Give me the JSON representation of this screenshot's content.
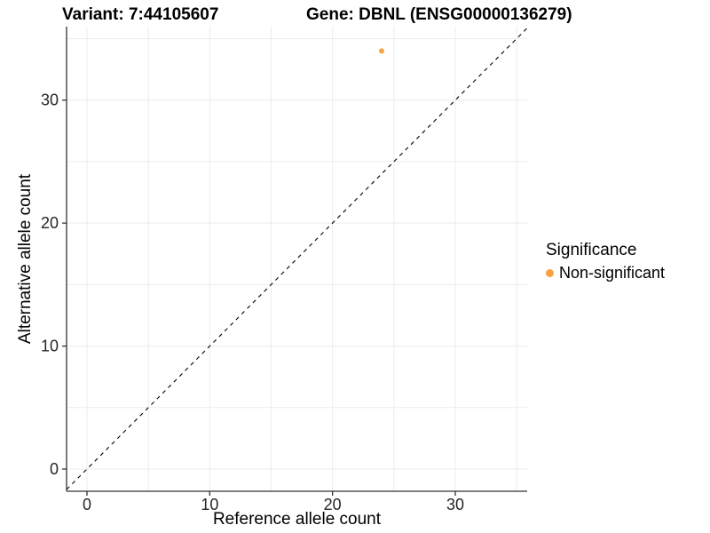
{
  "figure": {
    "title_left": "Variant: 7:44105607",
    "title_right": "Gene: DBNL (ENSG00000136279)"
  },
  "chart_data": {
    "type": "scatter",
    "title_left": "Variant: 7:44105607",
    "title_right": "Gene: DBNL (ENSG00000136279)",
    "xlabel": "Reference allele count",
    "ylabel": "Alternative allele count",
    "x_ticks": [
      0,
      10,
      20,
      30
    ],
    "y_ticks": [
      0,
      10,
      20,
      30
    ],
    "grid_values": [
      0,
      5,
      10,
      15,
      20,
      25,
      30,
      35
    ],
    "xlim": [
      -1.7,
      35.9
    ],
    "ylim": [
      -1.8,
      36.0
    ],
    "grid": "on",
    "reference_line": {
      "type": "identity",
      "style": "dashed"
    },
    "series": [
      {
        "name": "Non-significant",
        "color": "#F9A242",
        "points": [
          {
            "x": 24,
            "y": 34
          }
        ]
      }
    ],
    "legend": {
      "position": "right",
      "title": "Significance",
      "items": [
        {
          "label": "Non-significant",
          "color": "#F9A242"
        }
      ]
    },
    "colors": {
      "point_orange": "#F9A242",
      "axis": "#333333",
      "grid": "#ECECEC",
      "tick_text": "#262626",
      "diagonal": "#000000"
    }
  }
}
